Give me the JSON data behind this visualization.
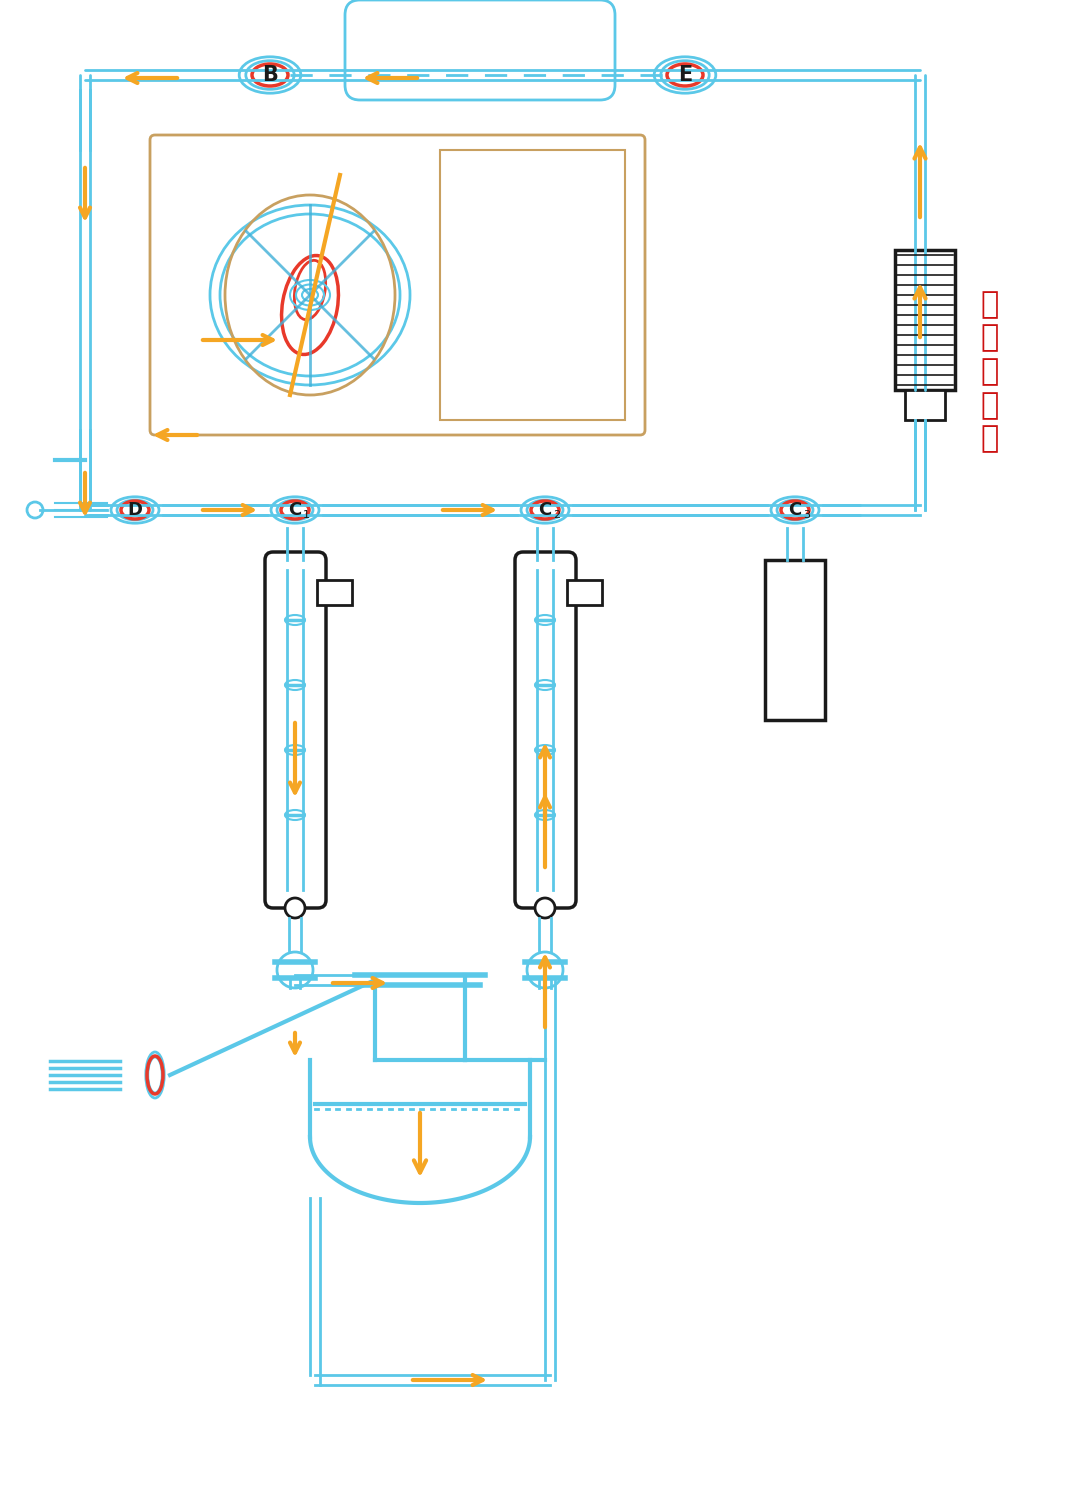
{
  "blue": "#5BC8E8",
  "blue2": "#40B0D8",
  "orange": "#F5A623",
  "red": "#E8392A",
  "dark_red": "#CC1111",
  "black": "#1A1A1A",
  "tan": "#C8A060",
  "white": "#FFFFFF",
  "bg": "#FFFFFF",
  "label_B": "B",
  "label_E": "E",
  "label_D": "D",
  "label_C1": "C",
  "label_C2": "C",
  "label_C3": "C",
  "pump_label": "磁驱柱塞泵",
  "title": ""
}
